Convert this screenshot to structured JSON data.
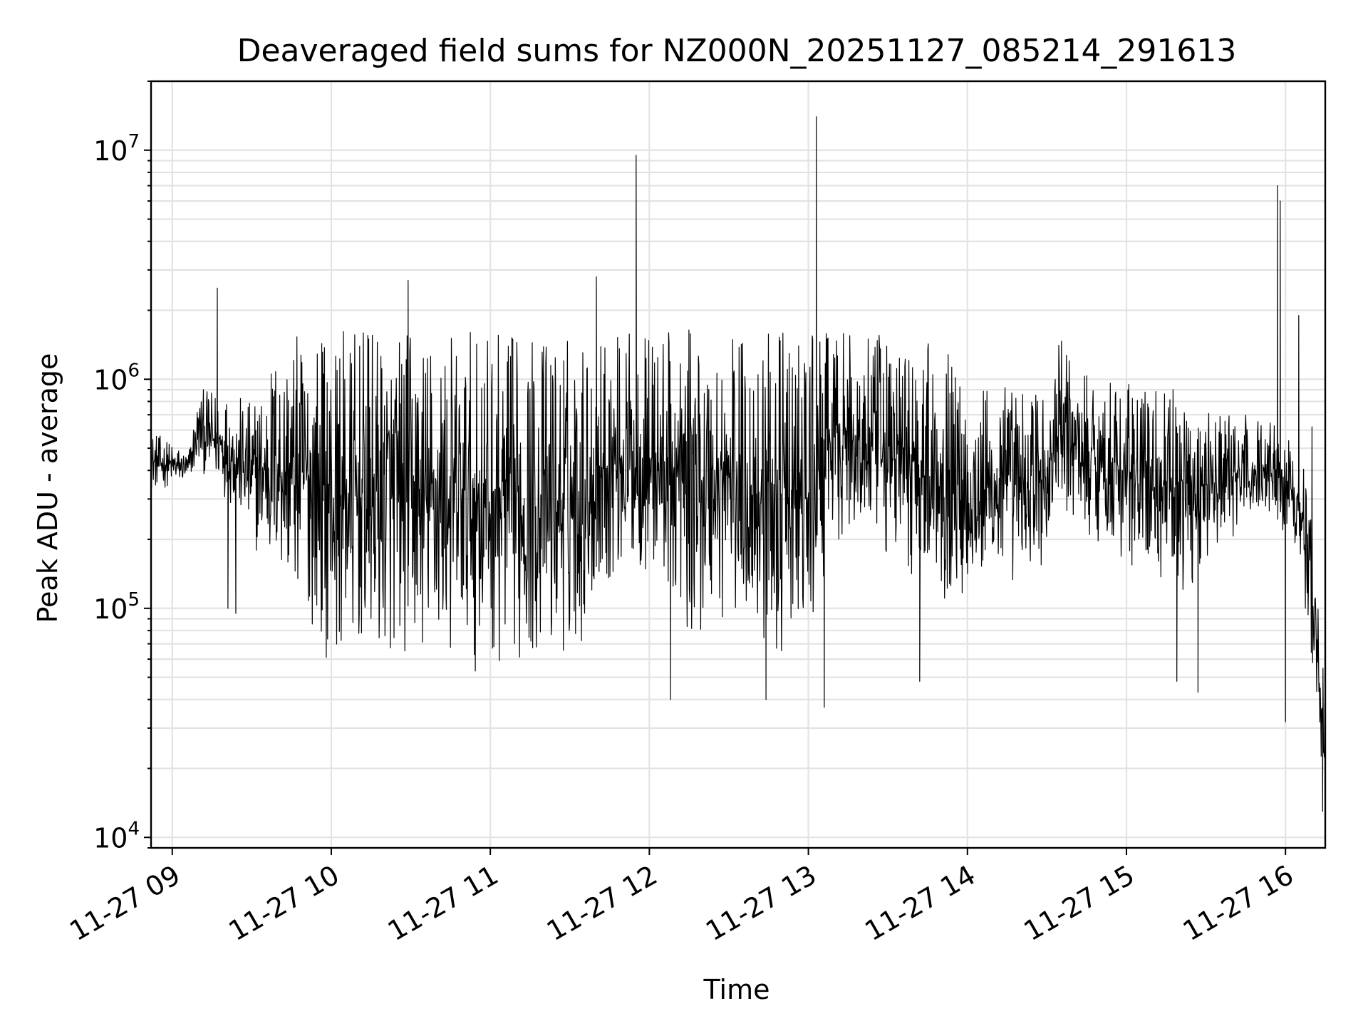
{
  "chart_data": {
    "type": "line",
    "title": "Deaveraged field sums for NZ000N_20251127_085214_291613",
    "xlabel": "Time",
    "ylabel": "Peak ADU - average",
    "xscale": "time",
    "yscale": "log",
    "xlim": [
      "2025-11-27 08:52",
      "2025-11-27 16:15"
    ],
    "ylim": [
      9000,
      20000000
    ],
    "grid": true,
    "legend": "none",
    "series_color": "#000000",
    "x_ticks": [
      {
        "value": "2025-11-27 09:00",
        "label": "11-27 09"
      },
      {
        "value": "2025-11-27 10:00",
        "label": "11-27 10"
      },
      {
        "value": "2025-11-27 11:00",
        "label": "11-27 11"
      },
      {
        "value": "2025-11-27 12:00",
        "label": "11-27 12"
      },
      {
        "value": "2025-11-27 13:00",
        "label": "11-27 13"
      },
      {
        "value": "2025-11-27 14:00",
        "label": "11-27 14"
      },
      {
        "value": "2025-11-27 15:00",
        "label": "11-27 15"
      },
      {
        "value": "2025-11-27 16:00",
        "label": "11-27 16"
      }
    ],
    "y_ticks": [
      {
        "value": 10000,
        "base": "10",
        "exp": "4"
      },
      {
        "value": 100000,
        "base": "10",
        "exp": "5"
      },
      {
        "value": 1000000,
        "base": "10",
        "exp": "6"
      },
      {
        "value": 10000000,
        "base": "10",
        "exp": "7"
      }
    ],
    "envelope": [
      {
        "t": "08:52",
        "low": 320000,
        "high": 600000
      },
      {
        "t": "09:06",
        "low": 350000,
        "high": 480000
      },
      {
        "t": "09:10",
        "low": 400000,
        "high": 900000
      },
      {
        "t": "09:20",
        "low": 300000,
        "high": 900000
      },
      {
        "t": "09:30",
        "low": 180000,
        "high": 800000
      },
      {
        "t": "09:40",
        "low": 120000,
        "high": 1500000
      },
      {
        "t": "09:50",
        "low": 90000,
        "high": 1600000
      },
      {
        "t": "10:00",
        "low": 55000,
        "high": 1650000
      },
      {
        "t": "10:30",
        "low": 55000,
        "high": 1650000
      },
      {
        "t": "11:00",
        "low": 52000,
        "high": 1600000
      },
      {
        "t": "11:30",
        "low": 55000,
        "high": 1600000
      },
      {
        "t": "11:45",
        "low": 120000,
        "high": 1600000
      },
      {
        "t": "12:00",
        "low": 130000,
        "high": 1650000
      },
      {
        "t": "12:15",
        "low": 70000,
        "high": 1650000
      },
      {
        "t": "12:30",
        "low": 80000,
        "high": 1650000
      },
      {
        "t": "12:45",
        "low": 60000,
        "high": 1600000
      },
      {
        "t": "13:00",
        "low": 55000,
        "high": 1600000
      },
      {
        "t": "13:10",
        "low": 200000,
        "high": 1600000
      },
      {
        "t": "13:30",
        "low": 150000,
        "high": 1550000
      },
      {
        "t": "13:50",
        "low": 110000,
        "high": 1500000
      },
      {
        "t": "14:00",
        "low": 100000,
        "high": 1000000
      },
      {
        "t": "14:30",
        "low": 140000,
        "high": 950000
      },
      {
        "t": "14:35",
        "low": 250000,
        "high": 1500000
      },
      {
        "t": "14:45",
        "low": 200000,
        "high": 1100000
      },
      {
        "t": "15:00",
        "low": 150000,
        "high": 1000000
      },
      {
        "t": "15:20",
        "low": 110000,
        "high": 900000
      },
      {
        "t": "15:40",
        "low": 200000,
        "high": 700000
      },
      {
        "t": "15:55",
        "low": 250000,
        "high": 700000
      },
      {
        "t": "16:05",
        "low": 180000,
        "high": 500000
      },
      {
        "t": "16:10",
        "low": 50000,
        "high": 300000
      },
      {
        "t": "16:15",
        "low": 15000,
        "high": 40000
      }
    ],
    "spikes": [
      {
        "t": "09:17",
        "value": 2500000
      },
      {
        "t": "09:21",
        "value": 100000
      },
      {
        "t": "09:24",
        "value": 95000
      },
      {
        "t": "10:29",
        "value": 2700000
      },
      {
        "t": "11:40",
        "value": 2800000
      },
      {
        "t": "11:55",
        "value": 9500000
      },
      {
        "t": "12:08",
        "value": 40000
      },
      {
        "t": "12:44",
        "value": 40000
      },
      {
        "t": "13:03",
        "value": 14000000
      },
      {
        "t": "13:06",
        "value": 37000
      },
      {
        "t": "13:42",
        "value": 48000
      },
      {
        "t": "15:19",
        "value": 48000
      },
      {
        "t": "15:27",
        "value": 43000
      },
      {
        "t": "15:57",
        "value": 7000000
      },
      {
        "t": "15:58",
        "value": 6000000
      },
      {
        "t": "16:00",
        "value": 32000
      },
      {
        "t": "16:05",
        "value": 1900000
      },
      {
        "t": "16:10",
        "value": 620000
      },
      {
        "t": "16:14",
        "value": 13000
      }
    ]
  }
}
